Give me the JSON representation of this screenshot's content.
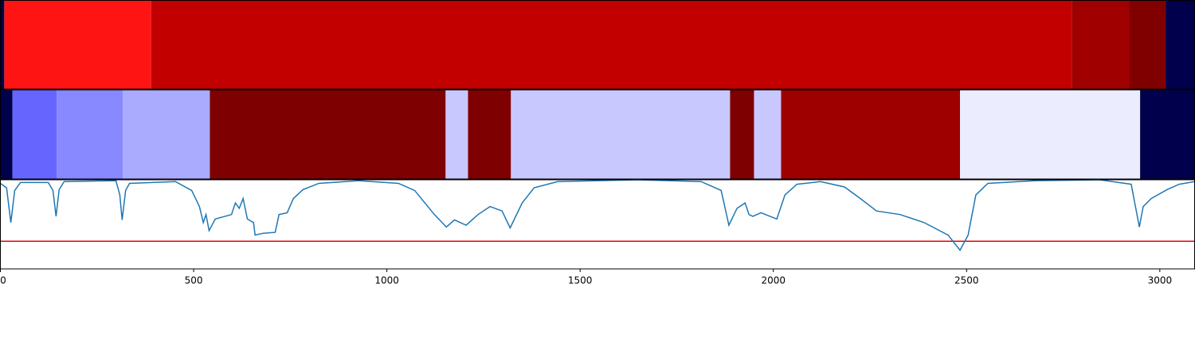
{
  "chart_data": [
    {
      "type": "heatmap",
      "xlim": [
        0,
        3090
      ],
      "segments": [
        {
          "start": 0,
          "end": 10,
          "color": "#00004c"
        },
        {
          "start": 10,
          "end": 390,
          "color": "#ff1414"
        },
        {
          "start": 390,
          "end": 2772,
          "color": "#c20000"
        },
        {
          "start": 2772,
          "end": 2920,
          "color": "#a00000"
        },
        {
          "start": 2920,
          "end": 3015,
          "color": "#800000"
        },
        {
          "start": 3015,
          "end": 3090,
          "color": "#00004c"
        }
      ]
    },
    {
      "type": "heatmap",
      "xlim": [
        0,
        3090
      ],
      "segments": [
        {
          "start": 0,
          "end": 31,
          "color": "#00004c"
        },
        {
          "start": 31,
          "end": 146,
          "color": "#6666ff"
        },
        {
          "start": 146,
          "end": 317,
          "color": "#8888ff"
        },
        {
          "start": 317,
          "end": 542,
          "color": "#aaaaff"
        },
        {
          "start": 542,
          "end": 1152,
          "color": "#7f0000"
        },
        {
          "start": 1152,
          "end": 1210,
          "color": "#c8c8ff"
        },
        {
          "start": 1210,
          "end": 1321,
          "color": "#7f0000"
        },
        {
          "start": 1321,
          "end": 1888,
          "color": "#c8c8ff"
        },
        {
          "start": 1888,
          "end": 1950,
          "color": "#7f0000"
        },
        {
          "start": 1950,
          "end": 2020,
          "color": "#c8c8ff"
        },
        {
          "start": 2020,
          "end": 2483,
          "color": "#9e0000"
        },
        {
          "start": 2483,
          "end": 2949,
          "color": "#ececff"
        },
        {
          "start": 2949,
          "end": 3090,
          "color": "#00004c"
        }
      ]
    },
    {
      "type": "line",
      "xlim": [
        0,
        3090
      ],
      "ylim": [
        0,
        1
      ],
      "xticks": [
        0,
        500,
        1000,
        1500,
        2000,
        2500,
        3000
      ],
      "threshold": 0.31,
      "threshold_color": "#e8000b",
      "x": [
        0,
        16,
        27,
        37,
        52,
        124,
        136,
        144,
        152,
        165,
        299,
        309,
        315,
        324,
        334,
        453,
        495,
        515,
        525,
        532,
        540,
        556,
        598,
        608,
        618,
        628,
        639,
        655,
        659,
        680,
        711,
        721,
        742,
        758,
        783,
        824,
        927,
        1030,
        1072,
        1123,
        1154,
        1175,
        1205,
        1236,
        1267,
        1298,
        1319,
        1350,
        1381,
        1442,
        1648,
        1813,
        1865,
        1885,
        1906,
        1927,
        1937,
        1947,
        1968,
        2009,
        2030,
        2061,
        2122,
        2184,
        2225,
        2267,
        2328,
        2390,
        2452,
        2483,
        2504,
        2524,
        2555,
        2679,
        2844,
        2926,
        2947,
        2957,
        2978,
        3019,
        3050,
        3090
      ],
      "series": [
        {
          "color": "#1f77b4",
          "values": [
            0.96,
            0.91,
            0.52,
            0.88,
            0.97,
            0.97,
            0.88,
            0.59,
            0.89,
            0.98,
            0.99,
            0.83,
            0.55,
            0.88,
            0.96,
            0.98,
            0.88,
            0.7,
            0.52,
            0.61,
            0.43,
            0.56,
            0.61,
            0.74,
            0.68,
            0.79,
            0.56,
            0.52,
            0.38,
            0.4,
            0.41,
            0.61,
            0.63,
            0.79,
            0.89,
            0.96,
            0.99,
            0.96,
            0.88,
            0.61,
            0.47,
            0.55,
            0.49,
            0.61,
            0.7,
            0.65,
            0.46,
            0.74,
            0.91,
            0.98,
            1.0,
            0.98,
            0.88,
            0.49,
            0.68,
            0.74,
            0.61,
            0.59,
            0.63,
            0.56,
            0.83,
            0.95,
            0.98,
            0.92,
            0.79,
            0.65,
            0.61,
            0.52,
            0.38,
            0.21,
            0.38,
            0.83,
            0.96,
            0.99,
            1.0,
            0.95,
            0.47,
            0.7,
            0.79,
            0.89,
            0.95,
            0.98
          ]
        }
      ]
    }
  ]
}
